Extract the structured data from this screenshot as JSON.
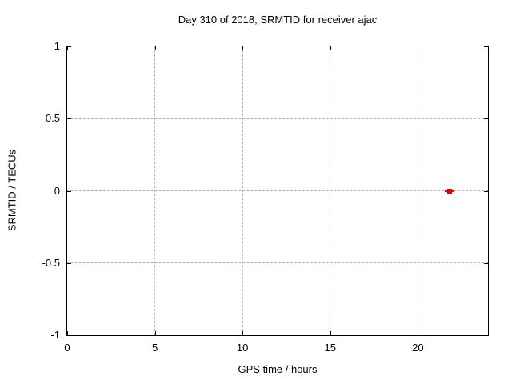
{
  "chart_data": {
    "type": "scatter",
    "title": "Day 310 of 2018, SRMTID for receiver ajac",
    "xlabel": "GPS time / hours",
    "ylabel": "SRMTID / TECUs",
    "xlim": [
      0,
      24
    ],
    "ylim": [
      -1,
      1
    ],
    "grid": true,
    "grid_style": "dashed",
    "legend": "none",
    "xticks": [
      {
        "value": 0,
        "label": "0"
      },
      {
        "value": 5,
        "label": "5"
      },
      {
        "value": 10,
        "label": "10"
      },
      {
        "value": 15,
        "label": "15"
      },
      {
        "value": 20,
        "label": "20"
      }
    ],
    "yticks": [
      {
        "value": 1,
        "label": "1"
      },
      {
        "value": 0.5,
        "label": "0.5"
      },
      {
        "value": 0,
        "label": "0"
      },
      {
        "value": -0.5,
        "label": "-0.5"
      },
      {
        "value": -1,
        "label": "-1"
      }
    ],
    "series": [
      {
        "name": "SRMTID",
        "marker": "filled-square-with-x-errorbar",
        "color": "#e60000",
        "points": [
          {
            "x": 21.8,
            "y": 0,
            "xerr": 0.25
          }
        ]
      }
    ]
  },
  "colors": {
    "background": "#ffffff",
    "plot_background": "#ffffff",
    "frame": "#000000",
    "grid": "#b3b3b3",
    "text": "#000000",
    "marker": "#e60000"
  }
}
